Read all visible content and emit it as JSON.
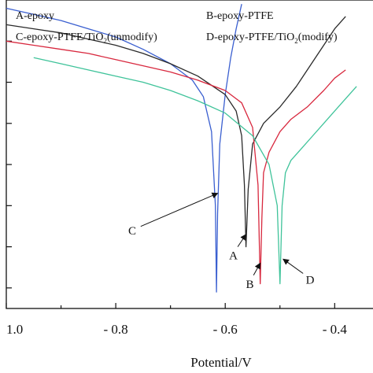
{
  "chart_data": {
    "type": "line",
    "xlabel": "Potential/V",
    "ylabel": "",
    "title": "",
    "xlim": [
      -1.0,
      -0.33
    ],
    "ylim": [
      -9.5,
      -2.0
    ],
    "x_ticks": [
      -1.0,
      -0.9,
      -0.8,
      -0.7,
      -0.6,
      -0.5,
      -0.4
    ],
    "x_tick_labels": [
      "1.0",
      "",
      "- 0.8",
      "",
      "- 0.6",
      "",
      "- 0.4"
    ],
    "y_ticks": [
      -3,
      -4,
      -5,
      -6,
      -7,
      -8,
      -9
    ],
    "legend": {
      "placement": "top",
      "entries": [
        {
          "text": "A-epoxy"
        },
        {
          "text": "B-epoxy-PTFE"
        },
        {
          "pre": "C-epoxy-PTFE/TiO",
          "sub": "2",
          "post": "(unmodify)"
        },
        {
          "pre": "D-epoxy-PTFE/TiO",
          "sub": "2",
          "post": "(modify)"
        }
      ]
    },
    "series": [
      {
        "key": "C",
        "color": "#3a5fd0",
        "x": [
          -1.0,
          -0.95,
          -0.9,
          -0.85,
          -0.8,
          -0.75,
          -0.7,
          -0.66,
          -0.64,
          -0.625,
          -0.618,
          -0.616,
          -0.614,
          -0.61,
          -0.6,
          -0.59,
          -0.58,
          -0.57
        ],
        "y": [
          -2.2,
          -2.35,
          -2.5,
          -2.7,
          -2.9,
          -3.2,
          -3.55,
          -3.95,
          -4.35,
          -5.2,
          -7.0,
          -9.1,
          -7.2,
          -5.5,
          -4.3,
          -3.4,
          -2.7,
          -2.1
        ]
      },
      {
        "key": "A",
        "color": "#2a2a2a",
        "x": [
          -1.0,
          -0.95,
          -0.9,
          -0.85,
          -0.8,
          -0.75,
          -0.7,
          -0.65,
          -0.6,
          -0.58,
          -0.57,
          -0.565,
          -0.562,
          -0.558,
          -0.55,
          -0.53,
          -0.5,
          -0.47,
          -0.44,
          -0.42,
          -0.4,
          -0.38
        ],
        "y": [
          -2.6,
          -2.7,
          -2.8,
          -2.95,
          -3.1,
          -3.3,
          -3.55,
          -3.85,
          -4.3,
          -4.7,
          -5.3,
          -6.5,
          -8.0,
          -6.6,
          -5.5,
          -5.0,
          -4.6,
          -4.1,
          -3.5,
          -3.1,
          -2.7,
          -2.4
        ]
      },
      {
        "key": "B",
        "color": "#d8283e",
        "x": [
          -1.0,
          -0.95,
          -0.9,
          -0.85,
          -0.8,
          -0.75,
          -0.7,
          -0.65,
          -0.6,
          -0.57,
          -0.55,
          -0.54,
          -0.536,
          -0.533,
          -0.53,
          -0.52,
          -0.5,
          -0.48,
          -0.45,
          -0.42,
          -0.4,
          -0.38
        ],
        "y": [
          -3.0,
          -3.1,
          -3.2,
          -3.3,
          -3.45,
          -3.6,
          -3.75,
          -3.95,
          -4.2,
          -4.5,
          -5.1,
          -6.5,
          -8.9,
          -7.3,
          -6.2,
          -5.7,
          -5.2,
          -4.9,
          -4.6,
          -4.2,
          -3.9,
          -3.7
        ]
      },
      {
        "key": "D",
        "color": "#3fc39a",
        "x": [
          -0.95,
          -0.9,
          -0.85,
          -0.8,
          -0.75,
          -0.7,
          -0.65,
          -0.6,
          -0.55,
          -0.52,
          -0.505,
          -0.5,
          -0.496,
          -0.49,
          -0.48,
          -0.46,
          -0.44,
          -0.42,
          -0.4,
          -0.38,
          -0.36
        ],
        "y": [
          -3.4,
          -3.55,
          -3.7,
          -3.85,
          -4.0,
          -4.2,
          -4.45,
          -4.75,
          -5.3,
          -6.0,
          -7.0,
          -8.9,
          -7.0,
          -6.2,
          -5.9,
          -5.6,
          -5.3,
          -5.0,
          -4.7,
          -4.4,
          -4.1
        ]
      }
    ],
    "annotations": [
      {
        "label": "C",
        "color": "#3a5fd0",
        "text_at": [
          -0.77,
          -7.7
        ],
        "arrow_to": [
          -0.614,
          -6.7
        ]
      },
      {
        "label": "A",
        "color": "#2a2a2a",
        "text_at": [
          -0.585,
          -8.3
        ],
        "arrow_to": [
          -0.562,
          -7.7
        ]
      },
      {
        "label": "B",
        "color": "#d8283e",
        "text_at": [
          -0.555,
          -9.0
        ],
        "arrow_to": [
          -0.536,
          -8.4
        ]
      },
      {
        "label": "D",
        "color": "#3fc39a",
        "text_at": [
          -0.445,
          -8.9
        ],
        "arrow_to": [
          -0.494,
          -8.3
        ]
      }
    ]
  }
}
